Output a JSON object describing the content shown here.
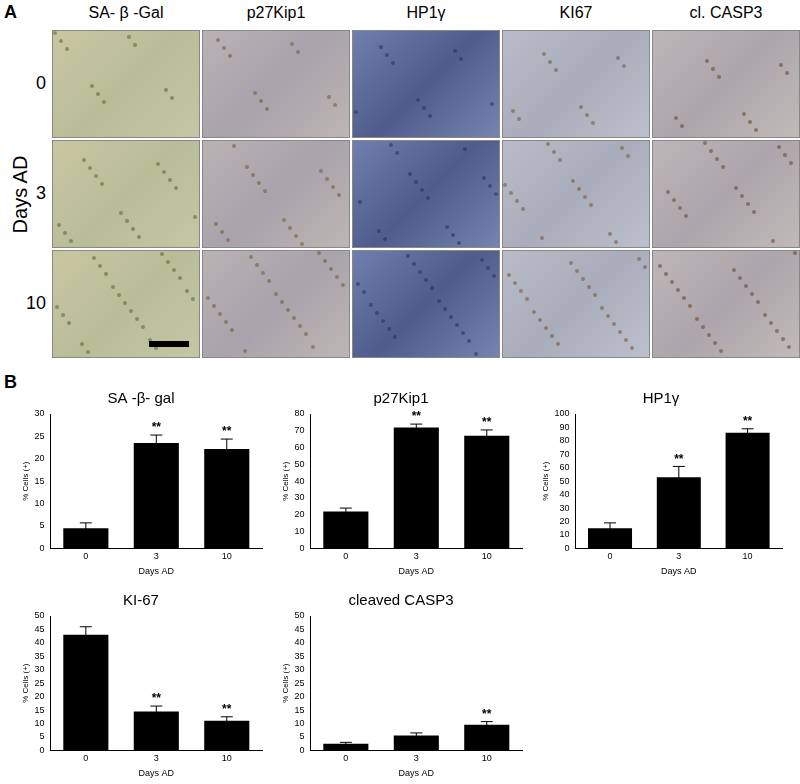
{
  "panel_labels": [
    "A",
    "B"
  ],
  "image_grid": {
    "columns": [
      "SA- β -Gal",
      "p27Kip1",
      "HP1γ",
      "KI67",
      "cl. CASP3"
    ],
    "rows": [
      "0",
      "3",
      "10"
    ],
    "row_axis_label": "Days AD"
  },
  "chart_data": [
    {
      "type": "bar",
      "title": "SA -β- gal",
      "categories": [
        "0",
        "3",
        "10"
      ],
      "values": [
        4.5,
        23.5,
        22.2
      ],
      "errors": [
        1.2,
        1.8,
        2.2
      ],
      "color": "#000000",
      "ylim": [
        0,
        30
      ],
      "yticks": [
        0,
        5,
        10,
        15,
        20,
        25,
        30
      ],
      "x_label": "Days AD",
      "y_label": "% Cells (+)",
      "grid": false,
      "annotations": [
        {
          "category": "3",
          "text": "**"
        },
        {
          "category": "10",
          "text": "**"
        }
      ]
    },
    {
      "type": "bar",
      "title": "p27Kip1",
      "categories": [
        "0",
        "3",
        "10"
      ],
      "values": [
        22,
        72,
        67
      ],
      "errors": [
        2,
        2,
        3.5
      ],
      "color": "#000000",
      "ylim": [
        0,
        80
      ],
      "yticks": [
        0,
        10,
        20,
        30,
        40,
        50,
        60,
        70,
        80
      ],
      "x_label": "Days AD",
      "y_label": "% Cells (+)",
      "grid": false,
      "annotations": [
        {
          "category": "3",
          "text": "**"
        },
        {
          "category": "10",
          "text": "**"
        }
      ]
    },
    {
      "type": "bar",
      "title": "HP1γ",
      "categories": [
        "0",
        "3",
        "10"
      ],
      "values": [
        15,
        53,
        86
      ],
      "errors": [
        4,
        8,
        3
      ],
      "color": "#000000",
      "ylim": [
        0,
        100
      ],
      "yticks": [
        0,
        10,
        20,
        30,
        40,
        50,
        60,
        70,
        80,
        90,
        100
      ],
      "x_label": "Days AD",
      "y_label": "% Cells (+)",
      "grid": false,
      "annotations": [
        {
          "category": "3",
          "text": "**"
        },
        {
          "category": "10",
          "text": "**"
        }
      ]
    },
    {
      "type": "bar",
      "title": "KI-67",
      "categories": [
        "0",
        "3",
        "10"
      ],
      "values": [
        43,
        14.5,
        11
      ],
      "errors": [
        3,
        2,
        1.5
      ],
      "color": "#000000",
      "ylim": [
        0,
        50
      ],
      "yticks": [
        0,
        5,
        10,
        15,
        20,
        25,
        30,
        35,
        40,
        45,
        50
      ],
      "x_label": "Days AD",
      "y_label": "% Cells (+)",
      "grid": false,
      "annotations": [
        {
          "category": "3",
          "text": "**"
        },
        {
          "category": "10",
          "text": "**"
        }
      ]
    },
    {
      "type": "bar",
      "title": "cleaved CASP3",
      "categories": [
        "0",
        "3",
        "10"
      ],
      "values": [
        2.5,
        5.5,
        9.5
      ],
      "errors": [
        0.5,
        1,
        1.2
      ],
      "color": "#000000",
      "ylim": [
        0,
        50
      ],
      "yticks": [
        0,
        5,
        10,
        15,
        20,
        25,
        30,
        35,
        40,
        45,
        50
      ],
      "x_label": "Days AD",
      "y_label": "% Cells (+)",
      "grid": false,
      "annotations": [
        {
          "category": "10",
          "text": "**"
        }
      ]
    }
  ]
}
